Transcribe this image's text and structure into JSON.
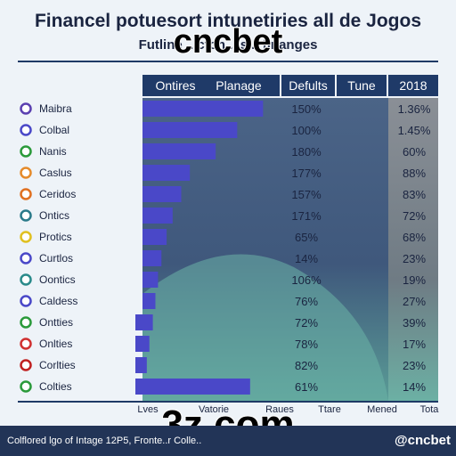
{
  "header": {
    "title": "Financel potuesort intunetiries all de Jogos",
    "subtitle": "Futline ...cton ...s... finanges",
    "columns": [
      "Ontires",
      "Planage",
      "Defults",
      "Tune",
      "2018"
    ]
  },
  "overlay": {
    "top": "cncbet",
    "bottom": "3z.com"
  },
  "footer_columns": [
    "Lves",
    "Vatorie",
    "Raues",
    "Ttare",
    "Mened",
    "Tota"
  ],
  "footer": {
    "text": "Colflored lgo of Intage 12P5, Fronte..r Colle..",
    "brand": "@cncbet"
  },
  "colors": {
    "bar": "#4a48c8",
    "header": "#1f3a68",
    "panel_dark": "#3d5577",
    "panel_teal": "#5ea39a"
  },
  "chart_data": {
    "type": "bar",
    "categories": [
      "Maibra",
      "Colbal",
      "Nanis",
      "Caslus",
      "Ceridos",
      "Ontics",
      "Protics",
      "Curtlos",
      "Oontics",
      "Caldess",
      "Ontties",
      "Onlties",
      "Corlties",
      "Colties"
    ],
    "dot_colors": [
      "#5a3fb0",
      "#4a48c8",
      "#2a9a3a",
      "#e58a2a",
      "#e07020",
      "#2a7a8a",
      "#e0c020",
      "#4a48c8",
      "#2a8a8a",
      "#4a48c8",
      "#2a9a3a",
      "#d03030",
      "#c02020",
      "#2a9a3a"
    ],
    "values": [
      140,
      110,
      85,
      55,
      45,
      35,
      28,
      22,
      18,
      15,
      12,
      8,
      5,
      125
    ],
    "labels_col1": [
      "150%",
      "100%",
      "180%",
      "177%",
      "157%",
      "171%",
      "65%",
      "14%",
      "106%",
      "76%",
      "72%",
      "78%",
      "82%",
      "61%"
    ],
    "labels_col2": [
      "1.36%",
      "1.45%",
      "60%",
      "88%",
      "83%",
      "72%",
      "68%",
      "23%",
      "19%",
      "27%",
      "39%",
      "17%",
      "23%",
      "14%"
    ]
  }
}
